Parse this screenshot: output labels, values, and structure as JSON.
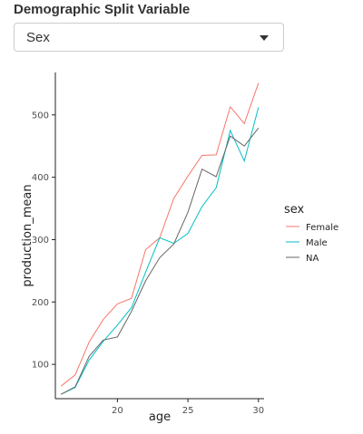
{
  "control": {
    "label": "Demographic Split Variable",
    "selected": "Sex"
  },
  "chart_data": {
    "type": "line",
    "xlabel": "age",
    "ylabel": "production_mean",
    "xlim": [
      15.6,
      30.4
    ],
    "ylim": [
      45,
      568
    ],
    "xticks": [
      20,
      25,
      30
    ],
    "yticks": [
      100,
      200,
      300,
      400,
      500
    ],
    "grid": false,
    "legend": {
      "title": "sex",
      "position": "right"
    },
    "x": [
      16,
      17,
      18,
      19,
      20,
      21,
      22,
      23,
      24,
      25,
      26,
      27,
      28,
      29,
      30
    ],
    "series": [
      {
        "name": "Female",
        "color": "#F8766D",
        "values": [
          65,
          83,
          136,
          172,
          197,
          206,
          284,
          303,
          366,
          402,
          435,
          436,
          513,
          486,
          551
        ]
      },
      {
        "name": "Male",
        "color": "#00BFC4",
        "values": [
          52,
          63,
          107,
          137,
          163,
          191,
          248,
          303,
          294,
          310,
          353,
          383,
          475,
          426,
          512
        ]
      },
      {
        "name": "NA",
        "color": "#666666",
        "values": [
          52,
          64,
          113,
          139,
          144,
          185,
          234,
          271,
          293,
          344,
          413,
          401,
          466,
          450,
          479
        ]
      }
    ]
  }
}
